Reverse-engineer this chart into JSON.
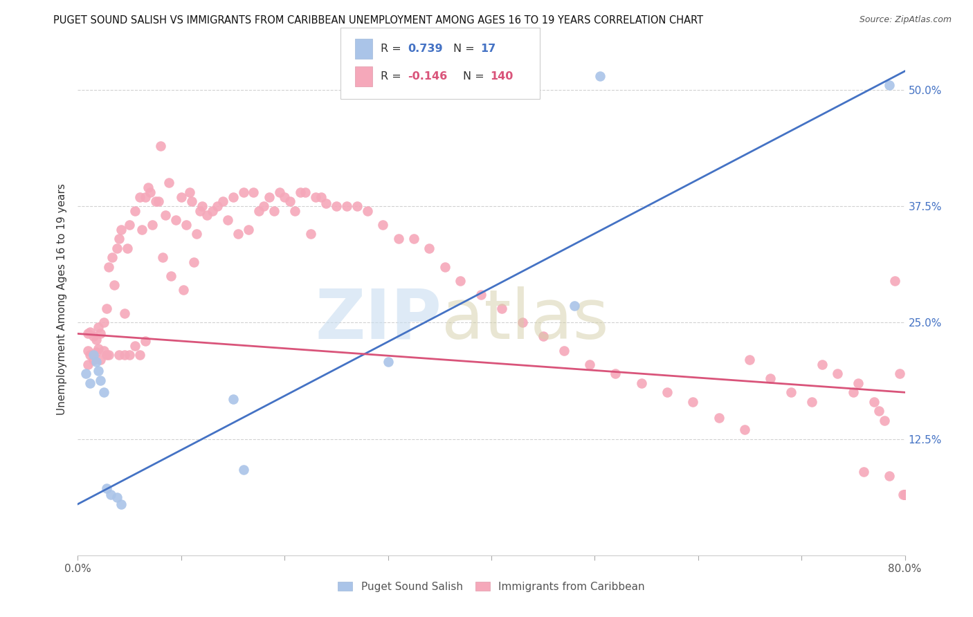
{
  "title": "PUGET SOUND SALISH VS IMMIGRANTS FROM CARIBBEAN UNEMPLOYMENT AMONG AGES 16 TO 19 YEARS CORRELATION CHART",
  "source": "Source: ZipAtlas.com",
  "ylabel": "Unemployment Among Ages 16 to 19 years",
  "xlim": [
    0.0,
    0.8
  ],
  "ylim": [
    0.0,
    0.55
  ],
  "xtick_vals": [
    0.0,
    0.1,
    0.2,
    0.3,
    0.4,
    0.5,
    0.6,
    0.7,
    0.8
  ],
  "xticklabels": [
    "0.0%",
    "",
    "",
    "",
    "",
    "",
    "",
    "",
    "80.0%"
  ],
  "ytick_positions": [
    0.125,
    0.25,
    0.375,
    0.5
  ],
  "ytick_labels": [
    "12.5%",
    "25.0%",
    "37.5%",
    "50.0%"
  ],
  "blue_color": "#aac4e8",
  "blue_line_color": "#4472c4",
  "pink_color": "#f5a8ba",
  "pink_line_color": "#d9547a",
  "legend_blue_R": "0.739",
  "legend_blue_N": "17",
  "legend_pink_R": "-0.146",
  "legend_pink_N": "140",
  "background_color": "#ffffff",
  "grid_color": "#cccccc",
  "blue_line_x0": 0.0,
  "blue_line_y0": 0.055,
  "blue_line_x1": 0.8,
  "blue_line_y1": 0.52,
  "pink_line_x0": 0.0,
  "pink_line_y0": 0.238,
  "pink_line_x1": 0.8,
  "pink_line_y1": 0.175,
  "blue_x": [
    0.008,
    0.012,
    0.015,
    0.018,
    0.02,
    0.022,
    0.025,
    0.028,
    0.032,
    0.038,
    0.042,
    0.15,
    0.16,
    0.3,
    0.48,
    0.505,
    0.785
  ],
  "blue_y": [
    0.195,
    0.185,
    0.215,
    0.208,
    0.198,
    0.188,
    0.175,
    0.072,
    0.065,
    0.062,
    0.055,
    0.168,
    0.092,
    0.208,
    0.268,
    0.515,
    0.505
  ],
  "pink_x": [
    0.01,
    0.01,
    0.01,
    0.012,
    0.012,
    0.015,
    0.015,
    0.018,
    0.018,
    0.02,
    0.02,
    0.022,
    0.022,
    0.025,
    0.025,
    0.028,
    0.028,
    0.03,
    0.03,
    0.033,
    0.035,
    0.038,
    0.04,
    0.04,
    0.042,
    0.045,
    0.045,
    0.048,
    0.05,
    0.05,
    0.055,
    0.055,
    0.06,
    0.06,
    0.062,
    0.065,
    0.065,
    0.068,
    0.07,
    0.072,
    0.075,
    0.078,
    0.08,
    0.082,
    0.085,
    0.088,
    0.09,
    0.095,
    0.1,
    0.102,
    0.105,
    0.108,
    0.11,
    0.112,
    0.115,
    0.118,
    0.12,
    0.125,
    0.13,
    0.135,
    0.14,
    0.145,
    0.15,
    0.155,
    0.16,
    0.165,
    0.17,
    0.175,
    0.18,
    0.185,
    0.19,
    0.195,
    0.2,
    0.205,
    0.21,
    0.215,
    0.22,
    0.225,
    0.23,
    0.235,
    0.24,
    0.25,
    0.26,
    0.27,
    0.28,
    0.295,
    0.31,
    0.325,
    0.34,
    0.355,
    0.37,
    0.39,
    0.41,
    0.43,
    0.45,
    0.47,
    0.495,
    0.52,
    0.545,
    0.57,
    0.595,
    0.62,
    0.645,
    0.65,
    0.67,
    0.69,
    0.71,
    0.72,
    0.735,
    0.75,
    0.755,
    0.76,
    0.77,
    0.775,
    0.78,
    0.785,
    0.79,
    0.795,
    0.798,
    0.8,
    0.8,
    0.8,
    0.8,
    0.8,
    0.8,
    0.8,
    0.8,
    0.8,
    0.8,
    0.8,
    0.8,
    0.8,
    0.8,
    0.8,
    0.8,
    0.8,
    0.8,
    0.8,
    0.8,
    0.8
  ],
  "pink_y": [
    0.238,
    0.22,
    0.205,
    0.24,
    0.215,
    0.235,
    0.21,
    0.232,
    0.218,
    0.245,
    0.222,
    0.238,
    0.21,
    0.25,
    0.22,
    0.265,
    0.215,
    0.31,
    0.215,
    0.32,
    0.29,
    0.33,
    0.34,
    0.215,
    0.35,
    0.26,
    0.215,
    0.33,
    0.355,
    0.215,
    0.37,
    0.225,
    0.385,
    0.215,
    0.35,
    0.385,
    0.23,
    0.395,
    0.39,
    0.355,
    0.38,
    0.38,
    0.44,
    0.32,
    0.365,
    0.4,
    0.3,
    0.36,
    0.385,
    0.285,
    0.355,
    0.39,
    0.38,
    0.315,
    0.345,
    0.37,
    0.375,
    0.365,
    0.37,
    0.375,
    0.38,
    0.36,
    0.385,
    0.345,
    0.39,
    0.35,
    0.39,
    0.37,
    0.375,
    0.385,
    0.37,
    0.39,
    0.385,
    0.38,
    0.37,
    0.39,
    0.39,
    0.345,
    0.385,
    0.385,
    0.378,
    0.375,
    0.375,
    0.375,
    0.37,
    0.355,
    0.34,
    0.34,
    0.33,
    0.31,
    0.295,
    0.28,
    0.265,
    0.25,
    0.235,
    0.22,
    0.205,
    0.195,
    0.185,
    0.175,
    0.165,
    0.148,
    0.135,
    0.21,
    0.19,
    0.175,
    0.165,
    0.205,
    0.195,
    0.175,
    0.185,
    0.09,
    0.165,
    0.155,
    0.145,
    0.085,
    0.295,
    0.195,
    0.065,
    0.065,
    0.065,
    0.065,
    0.065,
    0.065,
    0.065,
    0.065,
    0.065,
    0.065,
    0.065,
    0.065,
    0.065,
    0.065,
    0.065,
    0.065,
    0.065,
    0.065,
    0.065,
    0.065,
    0.065,
    0.065
  ]
}
